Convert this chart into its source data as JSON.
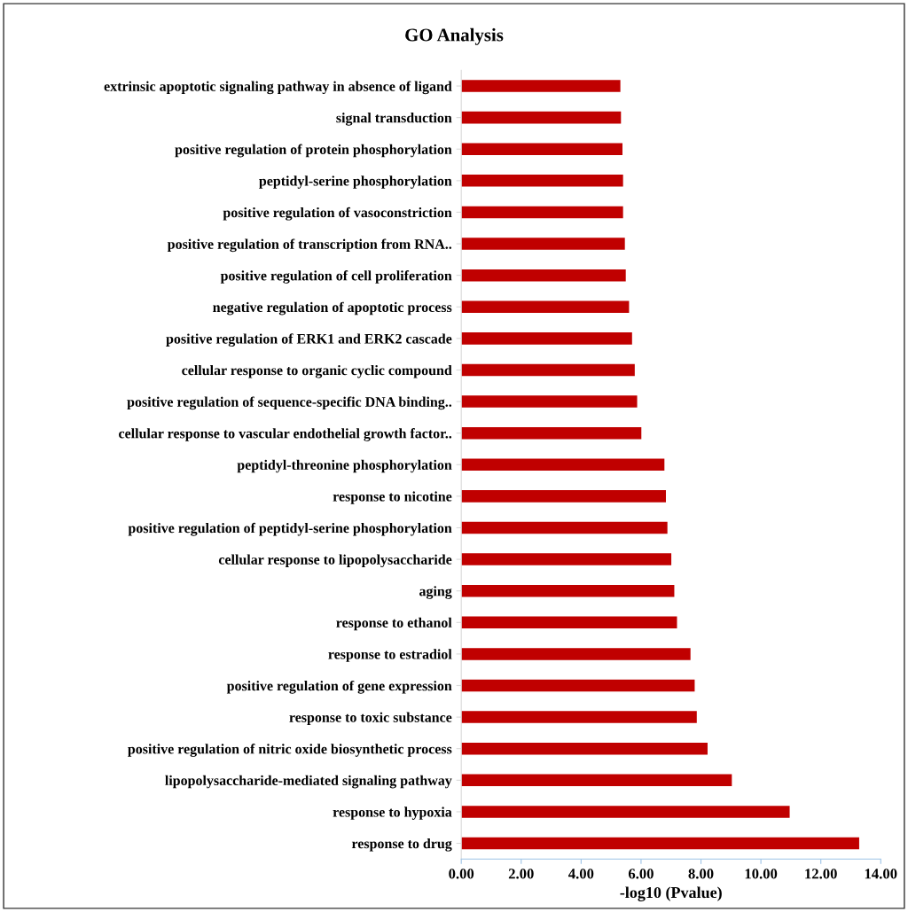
{
  "chart_data": {
    "type": "bar",
    "orientation": "horizontal",
    "title": "GO Analysis",
    "xlabel": "-log10 (Pvalue)",
    "categories": [
      "extrinsic apoptotic signaling pathway in absence of ligand",
      "signal transduction",
      "positive regulation of protein phosphorylation",
      "peptidyl-serine phosphorylation",
      "positive regulation of vasoconstriction",
      "positive regulation of transcription from RNA..",
      "positive regulation of cell proliferation",
      "negative regulation of apoptotic process",
      "positive regulation of ERK1 and ERK2 cascade",
      "cellular response to organic cyclic compound",
      "positive regulation of sequence-specific DNA binding..",
      "cellular response to vascular endothelial growth factor..",
      "peptidyl-threonine phosphorylation",
      "response to nicotine",
      "positive regulation of peptidyl-serine phosphorylation",
      "cellular response to lipopolysaccharide",
      "aging",
      "response to ethanol",
      "response to estradiol",
      "positive regulation of gene expression",
      "response to toxic substance",
      "positive regulation of nitric oxide biosynthetic process",
      "lipopolysaccharide-mediated signaling pathway",
      "response to hypoxia",
      "response to drug"
    ],
    "values": [
      5.31,
      5.33,
      5.38,
      5.4,
      5.4,
      5.46,
      5.49,
      5.6,
      5.7,
      5.79,
      5.87,
      6.01,
      6.78,
      6.83,
      6.88,
      7.01,
      7.11,
      7.2,
      7.65,
      7.79,
      7.86,
      8.22,
      9.03,
      10.96,
      13.28
    ],
    "color": "#c00000",
    "xlim": [
      0,
      14
    ],
    "xticks": [
      {
        "value": 0,
        "label": "0.00"
      },
      {
        "value": 2,
        "label": "2.00"
      },
      {
        "value": 4,
        "label": "4.00"
      },
      {
        "value": 6,
        "label": "6.00"
      },
      {
        "value": 8,
        "label": "8.00"
      },
      {
        "value": 10,
        "label": "10.00"
      },
      {
        "value": 12,
        "label": "12.00"
      },
      {
        "value": 14,
        "label": "14.00"
      }
    ],
    "grid": false,
    "legend": false
  }
}
